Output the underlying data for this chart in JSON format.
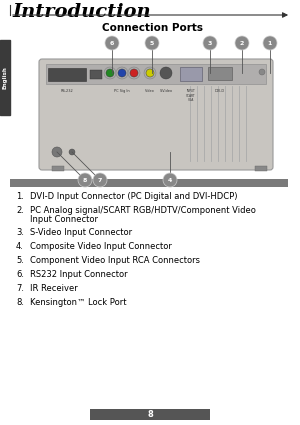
{
  "title": "Introduction",
  "subtitle": "Connection Ports",
  "bg_color": "#ffffff",
  "sidebar_color": "#3a3a3a",
  "sidebar_text": "English",
  "arrow_color": "#333333",
  "separator_bar_color": "#7a7a7a",
  "footer_bar_color": "#555555",
  "footer_number": "8",
  "list_items": [
    [
      "DVI-D Input Connector (PC Digital and DVI-HDCP)"
    ],
    [
      "PC Analog signal/SCART RGB/HDTV/Component Video",
      "Input Connector"
    ],
    [
      "S-Video Input Connector"
    ],
    [
      "Composite Video Input Connector"
    ],
    [
      "Component Video Input RCA Connectors"
    ],
    [
      "RS232 Input Connector"
    ],
    [
      "IR Receiver"
    ],
    [
      "Kensington™ Lock Port"
    ]
  ],
  "callout_color": "#888888",
  "callout_text_color": "#ffffff",
  "proj_body_color": "#c8c5c0",
  "proj_edge_color": "#999999",
  "proj_top_color": "#b8b5b0",
  "page_left_border": "#555555"
}
